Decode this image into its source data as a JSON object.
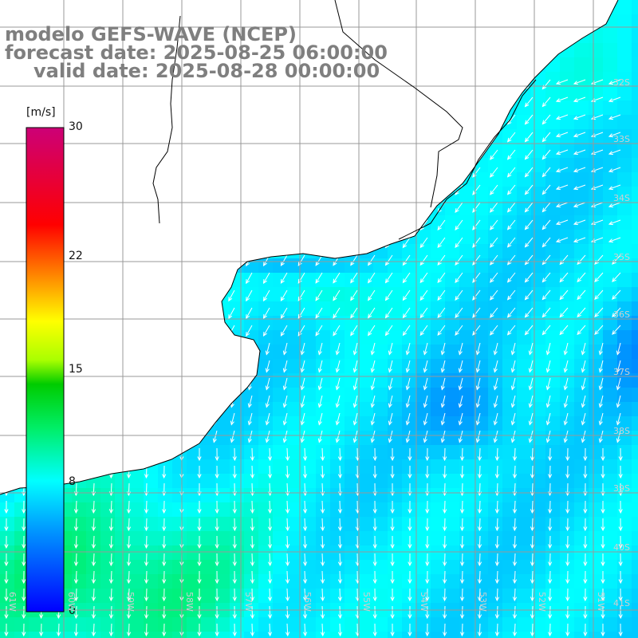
{
  "title_lines": {
    "model": "modelo GEFS-WAVE (NCEP)",
    "forecast": "forecast date: 2025-08-25 06:00:00",
    "valid": "valid date: 2025-08-28 00:00:00"
  },
  "colorbar": {
    "unit": "[m/s]",
    "min": 0,
    "max": 30,
    "ticks": [
      "30",
      "22",
      "15",
      "8",
      "0"
    ],
    "tick_values": [
      30,
      22,
      15,
      8,
      0
    ]
  },
  "lat_labels": [
    "32S",
    "33S",
    "34S",
    "35S",
    "36S",
    "37S",
    "38S",
    "39S",
    "40S",
    "41S"
  ],
  "lon_labels": [
    "61W",
    "60W",
    "59W",
    "58W",
    "57W",
    "56W",
    "55W",
    "54W",
    "53W",
    "52W",
    "51W"
  ],
  "chart_data": {
    "type": "heatmap",
    "title": "modelo GEFS-WAVE (NCEP)",
    "variable_unit": "m/s",
    "value_range": [
      0,
      30
    ],
    "typical_values": {
      "shelf_near_coast": 8,
      "open_ocean_east": 6,
      "south_west_sector": 11
    },
    "vector_direction": "mostly toward south / south-west",
    "lat_range": [
      "32S",
      "41S"
    ],
    "lon_range": [
      "61W",
      "51W"
    ]
  }
}
